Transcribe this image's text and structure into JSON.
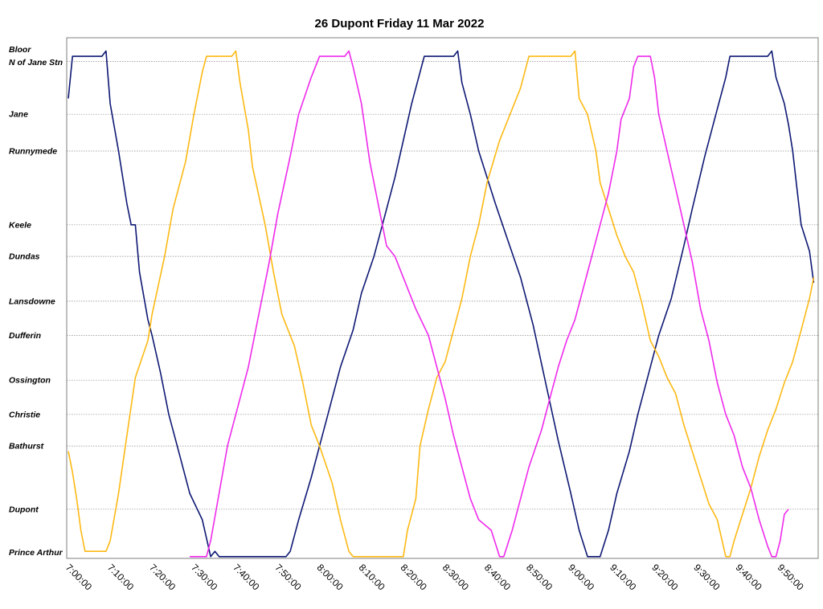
{
  "chart_data": {
    "type": "line",
    "title": "26 Dupont Friday 11 Mar 2022",
    "x_axis": {
      "unit": "time of day",
      "range": [
        "7:00:00",
        "9:58:00"
      ],
      "tick_labels": [
        "7:00:00",
        "7:10:00",
        "7:20:00",
        "7:30:00",
        "7:40:00",
        "7:50:00",
        "8:00:00",
        "8:10:00",
        "8:20:00",
        "8:30:00",
        "8:40:00",
        "8:50:00",
        "9:00:00",
        "9:10:00",
        "9:20:00",
        "9:30:00",
        "9:40:00",
        "9:50:00"
      ]
    },
    "y_axis": {
      "type": "stops",
      "stops": [
        {
          "name": "Bloor",
          "pos": 0.0
        },
        {
          "name": "N of Jane Stn",
          "pos": 0.2
        },
        {
          "name": "Jane",
          "pos": 1.2
        },
        {
          "name": "Runnymede",
          "pos": 1.9
        },
        {
          "name": "Keele",
          "pos": 3.3
        },
        {
          "name": "Dundas",
          "pos": 3.9
        },
        {
          "name": "Lansdowne",
          "pos": 4.75
        },
        {
          "name": "Dufferin",
          "pos": 5.4
        },
        {
          "name": "Ossington",
          "pos": 6.25
        },
        {
          "name": "Christie",
          "pos": 6.9
        },
        {
          "name": "Bathurst",
          "pos": 7.5
        },
        {
          "name": "Dupont",
          "pos": 8.7
        },
        {
          "name": "Prince Arthur",
          "pos": 9.55
        }
      ],
      "range": [
        -0.05,
        9.65
      ]
    },
    "grid": "horizontal lines at each stop",
    "colors": {
      "navy": "#0d1873",
      "gold": "#fdb914",
      "magenta": "#ee2aeb"
    },
    "series": [
      {
        "color": "#0d1873",
        "points": [
          [
            "7:00:00",
            0.9
          ],
          [
            "7:01:00",
            0.1
          ],
          [
            "7:08:00",
            0.1
          ],
          [
            "7:09:00",
            0.0
          ],
          [
            "7:10:00",
            1.0
          ],
          [
            "7:12:00",
            1.9
          ],
          [
            "7:14:00",
            2.9
          ],
          [
            "7:15:00",
            3.3
          ],
          [
            "7:16:00",
            3.3
          ],
          [
            "7:17:00",
            4.2
          ],
          [
            "7:19:00",
            5.1
          ],
          [
            "7:20:00",
            5.4
          ],
          [
            "7:22:00",
            6.1
          ],
          [
            "7:24:00",
            6.9
          ],
          [
            "7:26:00",
            7.5
          ],
          [
            "7:29:00",
            8.4
          ],
          [
            "7:32:00",
            8.9
          ],
          [
            "7:34:00",
            9.6
          ],
          [
            "7:35:00",
            9.5
          ],
          [
            "7:36:00",
            9.6
          ],
          [
            "7:52:00",
            9.6
          ],
          [
            "7:53:00",
            9.5
          ],
          [
            "7:55:00",
            8.9
          ],
          [
            "7:58:00",
            8.1
          ],
          [
            "8:00:00",
            7.5
          ],
          [
            "8:02:00",
            6.9
          ],
          [
            "8:05:00",
            6.0
          ],
          [
            "8:08:00",
            5.3
          ],
          [
            "8:10:00",
            4.6
          ],
          [
            "8:13:00",
            3.9
          ],
          [
            "8:15:00",
            3.3
          ],
          [
            "8:18:00",
            2.4
          ],
          [
            "8:22:00",
            1.0
          ],
          [
            "8:25:00",
            0.1
          ],
          [
            "8:32:00",
            0.1
          ],
          [
            "8:33:00",
            0.0
          ],
          [
            "8:34:00",
            0.6
          ],
          [
            "8:36:00",
            1.2
          ],
          [
            "8:38:00",
            1.9
          ],
          [
            "8:42:00",
            2.9
          ],
          [
            "8:45:00",
            3.6
          ],
          [
            "8:48:00",
            4.3
          ],
          [
            "8:51:00",
            5.2
          ],
          [
            "8:54:00",
            6.3
          ],
          [
            "8:57:00",
            7.4
          ],
          [
            "9:00:00",
            8.4
          ],
          [
            "9:02:00",
            9.1
          ],
          [
            "9:04:00",
            9.6
          ],
          [
            "9:07:00",
            9.6
          ],
          [
            "9:09:00",
            9.1
          ],
          [
            "9:11:00",
            8.4
          ],
          [
            "9:14:00",
            7.6
          ],
          [
            "9:16:00",
            6.9
          ],
          [
            "9:19:00",
            6.0
          ],
          [
            "9:21:00",
            5.4
          ],
          [
            "9:24:00",
            4.7
          ],
          [
            "9:27:00",
            3.7
          ],
          [
            "9:29:00",
            3.0
          ],
          [
            "9:32:00",
            2.0
          ],
          [
            "9:35:00",
            1.1
          ],
          [
            "9:37:00",
            0.5
          ],
          [
            "9:38:00",
            0.1
          ],
          [
            "9:47:00",
            0.1
          ],
          [
            "9:48:00",
            0.0
          ],
          [
            "9:49:00",
            0.5
          ],
          [
            "9:51:00",
            1.0
          ],
          [
            "9:52:00",
            1.4
          ],
          [
            "9:53:00",
            1.9
          ],
          [
            "9:54:00",
            2.6
          ],
          [
            "9:55:00",
            3.3
          ],
          [
            "9:57:00",
            3.8
          ],
          [
            "9:58:00",
            4.4
          ]
        ]
      },
      {
        "color": "#fdb914",
        "points": [
          [
            "7:00:00",
            7.6
          ],
          [
            "7:01:00",
            8.0
          ],
          [
            "7:02:00",
            8.5
          ],
          [
            "7:03:00",
            9.1
          ],
          [
            "7:04:00",
            9.5
          ],
          [
            "7:09:00",
            9.5
          ],
          [
            "7:10:00",
            9.3
          ],
          [
            "7:12:00",
            8.4
          ],
          [
            "7:14:00",
            7.3
          ],
          [
            "7:16:00",
            6.2
          ],
          [
            "7:19:00",
            5.5
          ],
          [
            "7:20:00",
            5.0
          ],
          [
            "7:23:00",
            3.9
          ],
          [
            "7:25:00",
            3.0
          ],
          [
            "7:28:00",
            2.1
          ],
          [
            "7:30:00",
            1.2
          ],
          [
            "7:32:00",
            0.4
          ],
          [
            "7:33:00",
            0.1
          ],
          [
            "7:39:00",
            0.1
          ],
          [
            "7:40:00",
            0.0
          ],
          [
            "7:41:00",
            0.6
          ],
          [
            "7:43:00",
            1.5
          ],
          [
            "7:44:00",
            2.2
          ],
          [
            "7:47:00",
            3.3
          ],
          [
            "7:49:00",
            4.2
          ],
          [
            "7:51:00",
            5.0
          ],
          [
            "7:54:00",
            5.6
          ],
          [
            "7:56:00",
            6.3
          ],
          [
            "7:58:00",
            7.1
          ],
          [
            "8:00:00",
            7.5
          ],
          [
            "8:03:00",
            8.2
          ],
          [
            "8:05:00",
            8.9
          ],
          [
            "8:07:00",
            9.5
          ],
          [
            "8:08:00",
            9.6
          ],
          [
            "8:20:00",
            9.6
          ],
          [
            "8:21:00",
            9.1
          ],
          [
            "8:23:00",
            8.5
          ],
          [
            "8:24:00",
            7.5
          ],
          [
            "8:26:00",
            6.8
          ],
          [
            "8:28:00",
            6.2
          ],
          [
            "8:30:00",
            5.9
          ],
          [
            "8:32:00",
            5.3
          ],
          [
            "8:34:00",
            4.7
          ],
          [
            "8:36:00",
            3.9
          ],
          [
            "8:38:00",
            3.3
          ],
          [
            "8:40:00",
            2.5
          ],
          [
            "8:43:00",
            1.7
          ],
          [
            "8:46:00",
            1.1
          ],
          [
            "8:48:00",
            0.7
          ],
          [
            "8:50:00",
            0.1
          ],
          [
            "9:00:00",
            0.1
          ],
          [
            "9:01:00",
            0.0
          ],
          [
            "9:02:00",
            0.9
          ],
          [
            "9:04:00",
            1.2
          ],
          [
            "9:06:00",
            1.9
          ],
          [
            "9:07:00",
            2.5
          ],
          [
            "9:09:00",
            3.0
          ],
          [
            "9:11:00",
            3.5
          ],
          [
            "9:13:00",
            3.9
          ],
          [
            "9:15:00",
            4.2
          ],
          [
            "9:17:00",
            4.8
          ],
          [
            "9:19:00",
            5.5
          ],
          [
            "9:21:00",
            5.8
          ],
          [
            "9:23:00",
            6.2
          ],
          [
            "9:25:00",
            6.5
          ],
          [
            "9:27:00",
            7.1
          ],
          [
            "9:29:00",
            7.6
          ],
          [
            "9:31:00",
            8.1
          ],
          [
            "9:33:00",
            8.6
          ],
          [
            "9:35:00",
            8.9
          ],
          [
            "9:37:00",
            9.6
          ],
          [
            "9:38:00",
            9.6
          ],
          [
            "9:39:00",
            9.3
          ],
          [
            "9:41:00",
            8.8
          ],
          [
            "9:43:00",
            8.3
          ],
          [
            "9:45:00",
            7.7
          ],
          [
            "9:47:00",
            7.2
          ],
          [
            "9:49:00",
            6.8
          ],
          [
            "9:51:00",
            6.3
          ],
          [
            "9:53:00",
            5.9
          ],
          [
            "9:55:00",
            5.3
          ],
          [
            "9:57:00",
            4.7
          ],
          [
            "9:58:00",
            4.3
          ]
        ]
      },
      {
        "color": "#ee2aeb",
        "points": [
          [
            "7:29:00",
            9.6
          ],
          [
            "7:33:00",
            9.6
          ],
          [
            "7:34:00",
            9.3
          ],
          [
            "7:36:00",
            8.4
          ],
          [
            "7:38:00",
            7.5
          ],
          [
            "7:40:00",
            6.9
          ],
          [
            "7:43:00",
            6.0
          ],
          [
            "7:45:00",
            5.2
          ],
          [
            "7:48:00",
            4.0
          ],
          [
            "7:50:00",
            3.1
          ],
          [
            "7:53:00",
            2.0
          ],
          [
            "7:55:00",
            1.2
          ],
          [
            "7:58:00",
            0.5
          ],
          [
            "8:00:00",
            0.1
          ],
          [
            "8:06:00",
            0.1
          ],
          [
            "8:07:00",
            0.0
          ],
          [
            "8:08:00",
            0.3
          ],
          [
            "8:10:00",
            1.0
          ],
          [
            "8:12:00",
            2.1
          ],
          [
            "8:14:00",
            2.9
          ],
          [
            "8:16:00",
            3.7
          ],
          [
            "8:18:00",
            3.9
          ],
          [
            "8:20:00",
            4.3
          ],
          [
            "8:23:00",
            4.9
          ],
          [
            "8:26:00",
            5.4
          ],
          [
            "8:28:00",
            6.0
          ],
          [
            "8:30:00",
            6.6
          ],
          [
            "8:32:00",
            7.3
          ],
          [
            "8:34:00",
            7.9
          ],
          [
            "8:36:00",
            8.5
          ],
          [
            "8:38:00",
            8.9
          ],
          [
            "8:41:00",
            9.1
          ],
          [
            "8:43:00",
            9.6
          ],
          [
            "8:44:00",
            9.6
          ],
          [
            "8:46:00",
            9.1
          ],
          [
            "8:48:00",
            8.5
          ],
          [
            "8:50:00",
            7.9
          ],
          [
            "8:53:00",
            7.2
          ],
          [
            "8:55:00",
            6.6
          ],
          [
            "8:57:00",
            6.0
          ],
          [
            "8:59:00",
            5.5
          ],
          [
            "9:01:00",
            5.1
          ],
          [
            "9:03:00",
            4.5
          ],
          [
            "9:05:00",
            3.9
          ],
          [
            "9:07:00",
            3.3
          ],
          [
            "9:09:00",
            2.7
          ],
          [
            "9:11:00",
            1.9
          ],
          [
            "9:12:00",
            1.3
          ],
          [
            "9:14:00",
            0.9
          ],
          [
            "9:15:00",
            0.3
          ],
          [
            "9:16:00",
            0.1
          ],
          [
            "9:19:00",
            0.1
          ],
          [
            "9:20:00",
            0.5
          ],
          [
            "9:21:00",
            1.2
          ],
          [
            "9:23:00",
            1.9
          ],
          [
            "9:25:00",
            2.6
          ],
          [
            "9:27:00",
            3.3
          ],
          [
            "9:29:00",
            4.0
          ],
          [
            "9:31:00",
            4.9
          ],
          [
            "9:33:00",
            5.5
          ],
          [
            "9:35:00",
            6.3
          ],
          [
            "9:37:00",
            6.9
          ],
          [
            "9:39:00",
            7.3
          ],
          [
            "9:41:00",
            7.9
          ],
          [
            "9:43:00",
            8.3
          ],
          [
            "9:45:00",
            8.9
          ],
          [
            "9:47:00",
            9.4
          ],
          [
            "9:48:00",
            9.6
          ],
          [
            "9:49:00",
            9.6
          ],
          [
            "9:50:00",
            9.3
          ],
          [
            "9:51:00",
            8.8
          ],
          [
            "9:52:00",
            8.7
          ]
        ]
      }
    ]
  }
}
